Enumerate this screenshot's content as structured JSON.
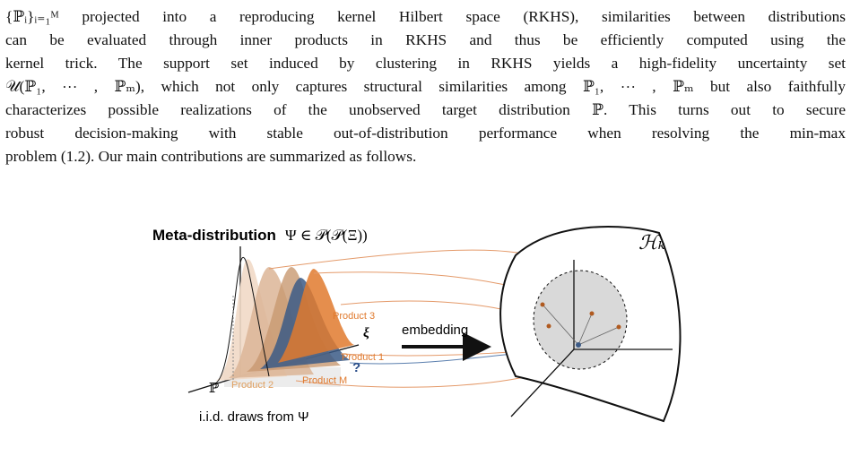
{
  "paragraph": {
    "lines": [
      "{ℙᵢ}ᵢ₌₁ᴹ projected into a reproducing kernel Hilbert space (RKHS), similarities between distributions",
      "can be evaluated through inner products in RKHS and thus be efficiently computed using the",
      "kernel trick. The support set induced by clustering in RKHS yields a high-fidelity uncertainty set",
      "𝒰(ℙ₁, ⋯ , ℙₘ), which not only captures structural similarities among ℙ₁, ⋯ , ℙₘ but also faithfully",
      "characterizes possible realizations of the unobserved target distribution ℙ. This turns out to secure",
      "robust decision-making with stable out-of-distribution performance when resolving the min-max",
      "problem (1.2). Our main contributions are summarized as follows."
    ]
  },
  "figure": {
    "meta_title": "Meta-distribution",
    "meta_formula": "Ψ ∈ 𝒫(𝒫(Ξ))",
    "product_3": "Product 3",
    "xi": "ξ",
    "embedding": "embedding",
    "product_1": "Product 1",
    "unknown": "?",
    "product_m": "Product M",
    "target": "ℙ",
    "product_2": "Product 2",
    "iid_caption": "i.i.d. draws from Ψ",
    "space": "ℋₖ"
  }
}
